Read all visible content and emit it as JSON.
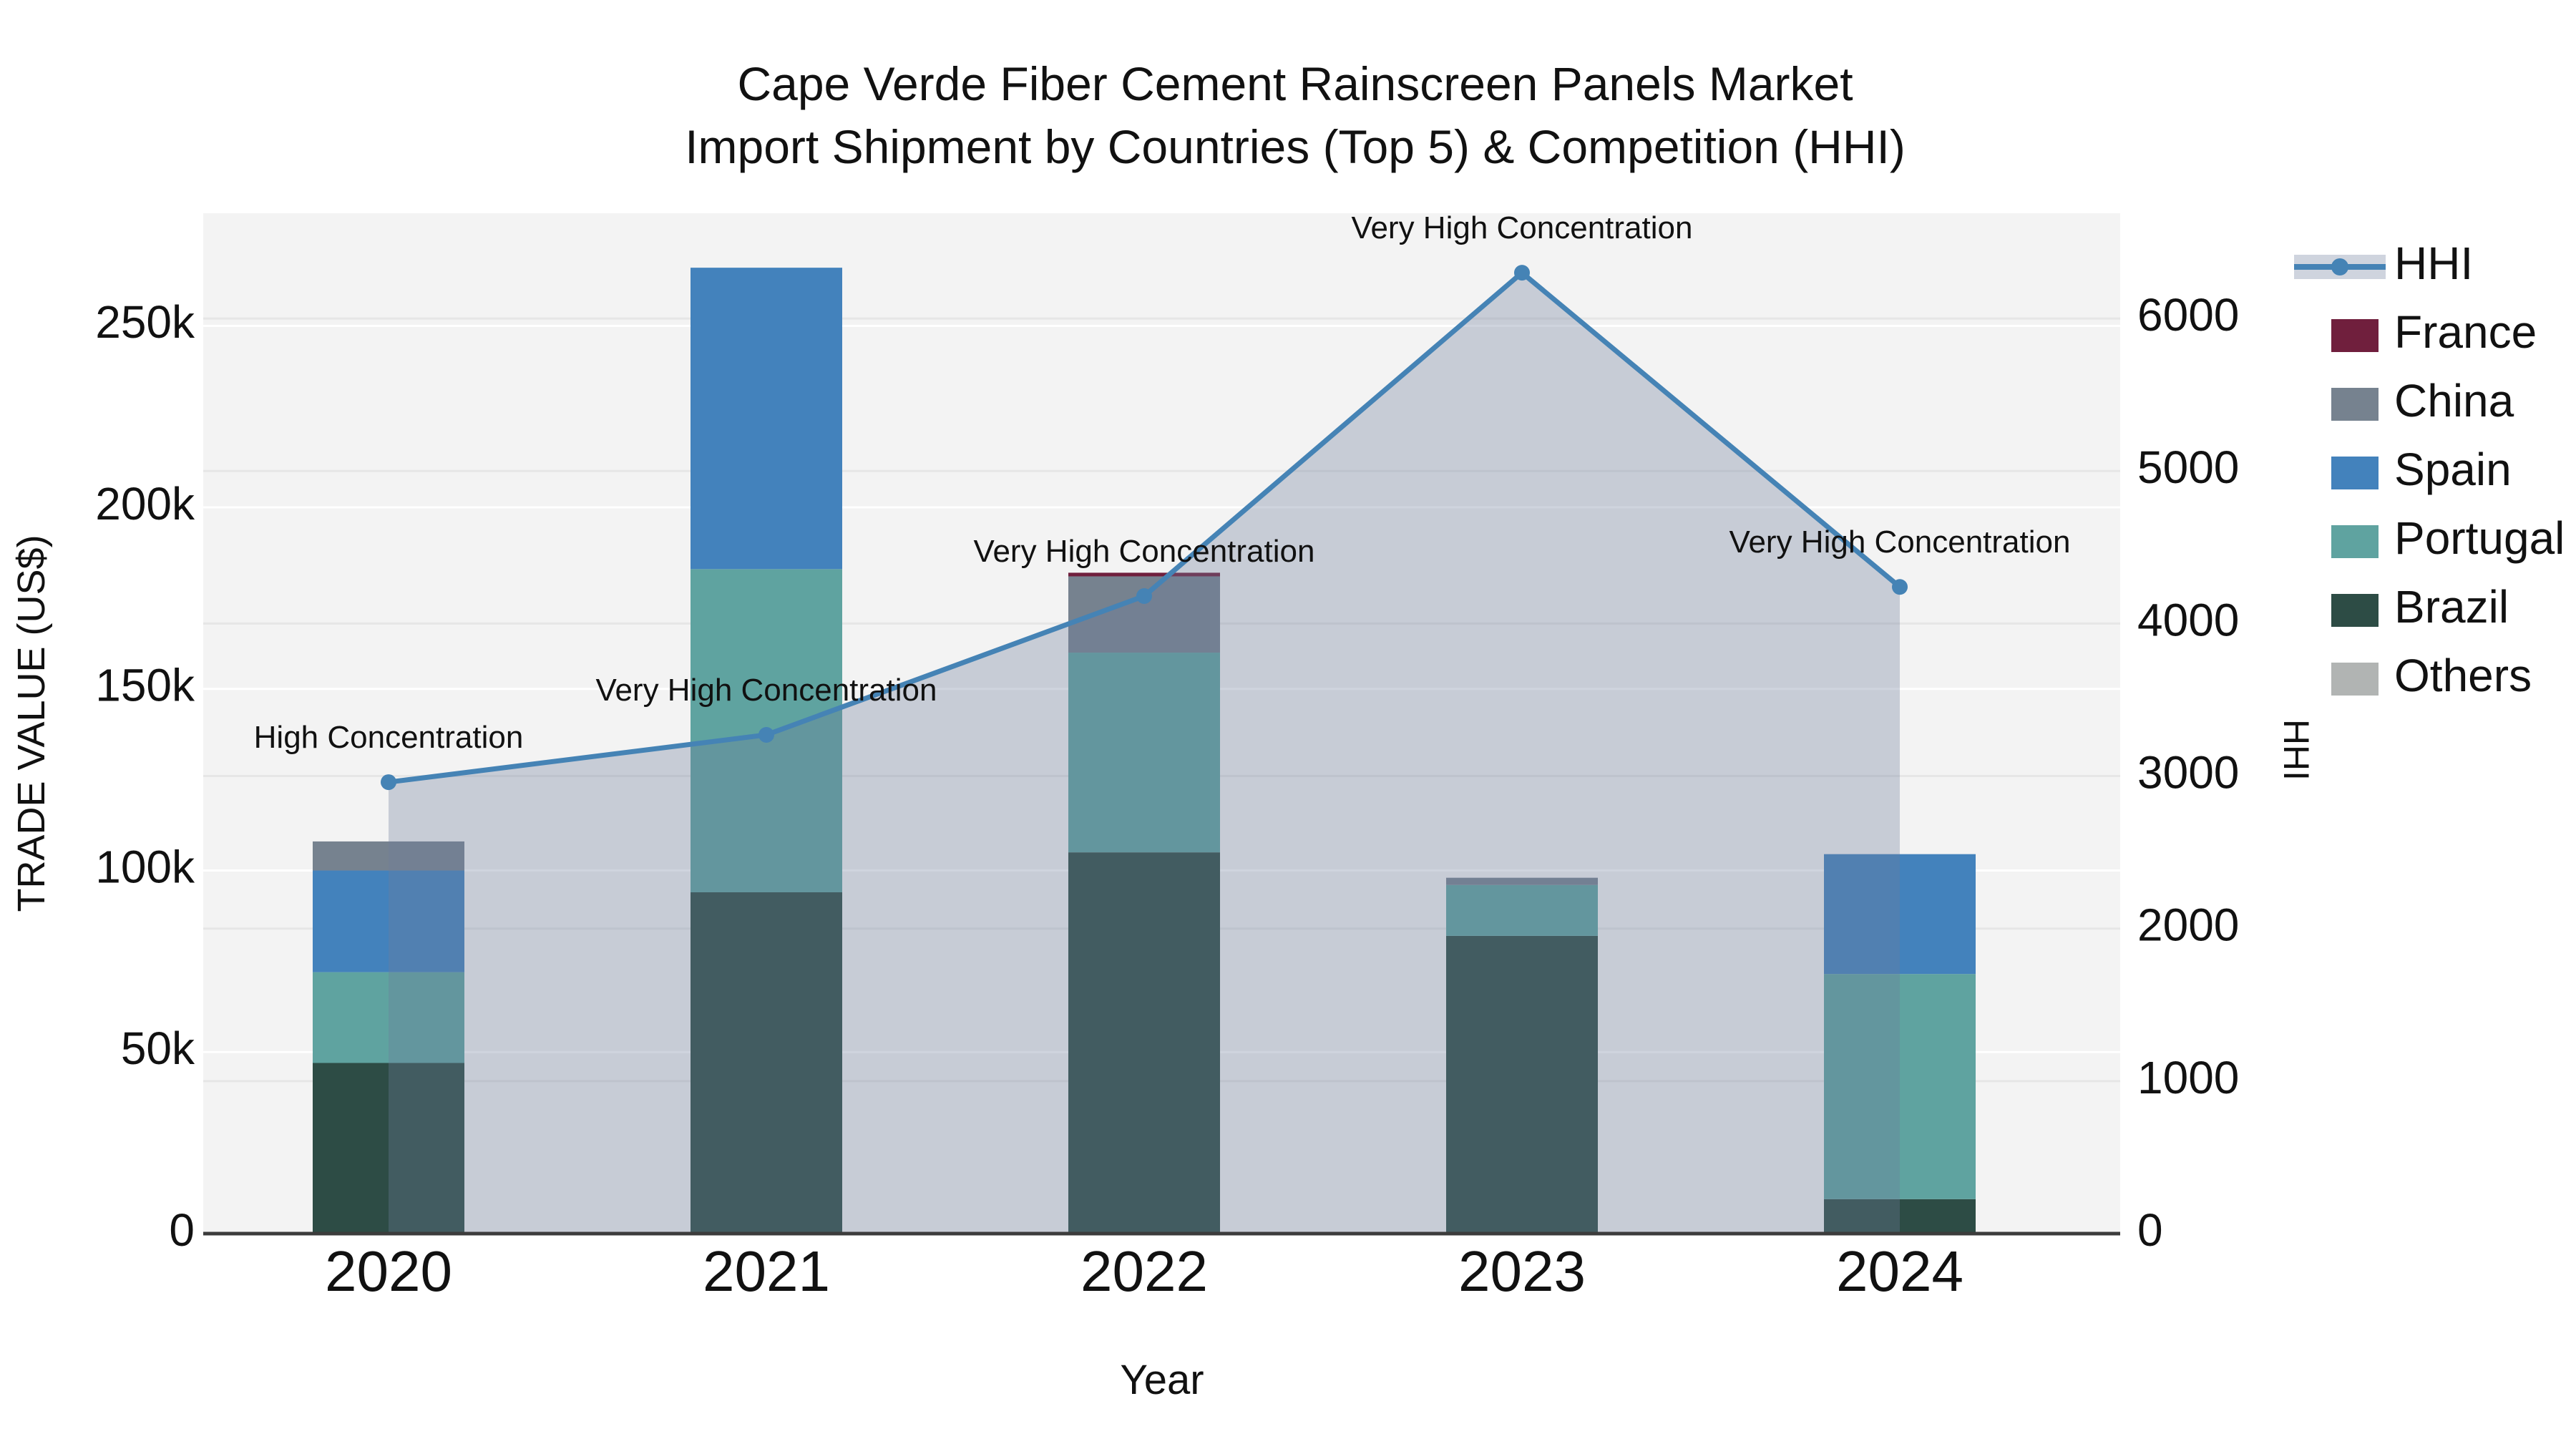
{
  "title": {
    "line1": "Cape Verde Fiber Cement Rainscreen Panels Market",
    "line2": "Import Shipment by Countries (Top 5) & Competition (HHI)"
  },
  "axes": {
    "y_left": {
      "title": "TRADE VALUE (US$)",
      "tick_labels": [
        "0",
        "50k",
        "100k",
        "150k",
        "200k",
        "250k"
      ],
      "tick_values": [
        0,
        50000,
        100000,
        150000,
        200000,
        250000
      ],
      "range": [
        0,
        281000
      ]
    },
    "y_right": {
      "title": "HHI",
      "tick_labels": [
        "0",
        "1000",
        "2000",
        "3000",
        "4000",
        "5000",
        "6000"
      ],
      "tick_values": [
        0,
        1000,
        2000,
        3000,
        4000,
        5000,
        6000
      ],
      "range": [
        0,
        6690
      ]
    },
    "x": {
      "title": "Year",
      "categories": [
        "2020",
        "2021",
        "2022",
        "2023",
        "2024"
      ]
    }
  },
  "colors": {
    "plot_background": "#f3f3f3",
    "page_background": "#ffffff",
    "axis_line": "#3c3c3c",
    "gridline_left": "rgba(255,255,255,0.95)",
    "gridline_right": "rgba(0,0,0,0.05)",
    "hhi_line": "#4583b5",
    "hhi_area_fill": "#6c7d9b",
    "hhi_area_opacity": 0.33,
    "text": "#111111"
  },
  "chart_data": {
    "type": "bar",
    "subtype": "stacked-bars-with-line",
    "categories": [
      "2020",
      "2021",
      "2022",
      "2023",
      "2024"
    ],
    "series": [
      {
        "name": "France",
        "color": "#701f3d",
        "values": [
          0,
          0,
          1000,
          0,
          0
        ]
      },
      {
        "name": "China",
        "color": "#76828f",
        "values": [
          8000,
          0,
          21000,
          2000,
          0
        ]
      },
      {
        "name": "Spain",
        "color": "#4382bc",
        "values": [
          28000,
          83000,
          0,
          0,
          33000
        ]
      },
      {
        "name": "Portugal",
        "color": "#5fa3a0",
        "values": [
          25000,
          89000,
          55000,
          14000,
          62000
        ]
      },
      {
        "name": "Brazil",
        "color": "#2d4c45",
        "values": [
          47000,
          94000,
          105000,
          82000,
          9500
        ]
      },
      {
        "name": "Others",
        "color": "#b1b4b3",
        "values": [
          0,
          0,
          0,
          0,
          0
        ]
      }
    ],
    "line_series": {
      "name": "HHI",
      "color": "#4583b5",
      "values": [
        2960,
        3270,
        4180,
        6300,
        4240
      ],
      "axis": "right",
      "area_fill": true
    },
    "annotations": [
      {
        "category": "2020",
        "text": "High Concentration"
      },
      {
        "category": "2021",
        "text": "Very High Concentration"
      },
      {
        "category": "2022",
        "text": "Very High Concentration"
      },
      {
        "category": "2023",
        "text": "Very High Concentration"
      },
      {
        "category": "2024",
        "text": "Very High Concentration"
      }
    ],
    "title": "Cape Verde Fiber Cement Rainscreen Panels Market Import Shipment by Countries (Top 5) & Competition (HHI)",
    "xlabel": "Year",
    "ylabel_left": "TRADE VALUE (US$)",
    "ylabel_right": "HHI",
    "ylim_left": [
      0,
      281000
    ],
    "ylim_right": [
      0,
      6690
    ],
    "grid": true,
    "legend_position": "right"
  },
  "legend": {
    "items": [
      {
        "label": "HHI",
        "type": "line-marker",
        "color": "#4583b5"
      },
      {
        "label": "France",
        "type": "swatch",
        "color": "#701f3d"
      },
      {
        "label": "China",
        "type": "swatch",
        "color": "#76828f"
      },
      {
        "label": "Spain",
        "type": "swatch",
        "color": "#4382bc"
      },
      {
        "label": "Portugal",
        "type": "swatch",
        "color": "#5fa3a0"
      },
      {
        "label": "Brazil",
        "type": "swatch",
        "color": "#2d4c45"
      },
      {
        "label": "Others",
        "type": "swatch",
        "color": "#b1b4b3"
      }
    ]
  }
}
